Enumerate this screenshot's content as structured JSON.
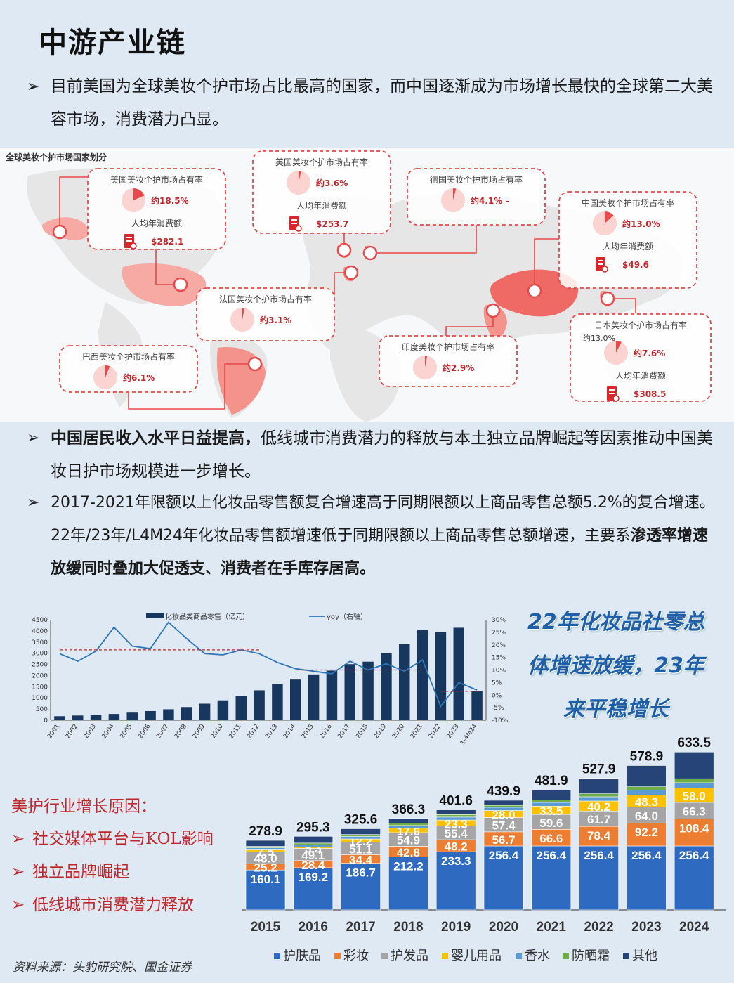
{
  "title": "中游产业链",
  "bullet1": {
    "arrow": "➢",
    "text": "目前美国为全球美妆个护市场占比最高的国家，而中国逐渐成为市场增长最快的全球第二大美容市场，消费潜力凸显。"
  },
  "map": {
    "title": "全球美妆个护市场国家划分",
    "countries": [
      {
        "title": "美国美妆个护市场占有率",
        "share": "约18.5%",
        "spend_label": "人均年消费额",
        "spend": "$282.1",
        "pct": 18.5
      },
      {
        "title": "英国美妆个护市场占有率",
        "share": "约3.6%",
        "spend_label": "人均年消费额",
        "spend": "$253.7",
        "pct": 3.6
      },
      {
        "title": "德国美妆个护市场占有率",
        "share": "约4.1% –",
        "pct": 4.1
      },
      {
        "title": "中国美妆个护市场占有率",
        "share": "约13.0%",
        "spend_label": "人均年消费额",
        "spend": "$49.6",
        "pct": 13.0
      },
      {
        "title": "法国美妆个护市场占有率",
        "share": "约3.1%",
        "pct": 3.1
      },
      {
        "title": "巴西美妆个护市场占有率",
        "share": "约6.1%",
        "pct": 6.1
      },
      {
        "title": "印度美妆个护市场占有率",
        "share": "约2.9%",
        "pct": 2.9
      },
      {
        "title": "日本美妆个护市场占有率",
        "extra": "约13.0%",
        "share": "约7.6%",
        "spend_label": "人均年消费额",
        "spend": "$308.5",
        "pct": 7.6
      }
    ]
  },
  "bullet2": {
    "arrow": "➢",
    "bold": "中国居民收入水平日益提高，",
    "text": "低线城市消费潜力的释放与本土独立品牌崛起等因素推动中国美妆日护市场规模进一步增长。"
  },
  "bullet3": {
    "arrow": "➢",
    "text": "2017-2021年限额以上化妆品零售额复合增速高于同期限额以上商品零售总额5.2%的复合增速。22年/23年/L4M24年化妆品零售额增速低于同期限额以上商品零售总额增速，主要系",
    "bold": "渗透率增速放缓同时叠加大促透支、消费者在手库存居高。"
  },
  "slogan": [
    "22年化妆品社零总",
    "体增速放缓，23年",
    "来平稳增长"
  ],
  "reasons": {
    "head": "美护行业增长原因：",
    "marker": "➢",
    "items": [
      "社交媒体平台与KOL影响",
      "独立品牌崛起",
      "低线城市消费潜力释放"
    ]
  },
  "source": "资料来源：头豹研究院、国金证券",
  "colors": {
    "navy": "#1b3f7a",
    "blue": "#2e6bc0",
    "orange": "#ed7d31",
    "gray": "#a5a5a5",
    "yellow": "#ffc000",
    "sky": "#5b9bd5",
    "green": "#70ad47",
    "dark": "#264478",
    "red": "#c0282d",
    "pink": "#f4a0a0"
  },
  "chart_data": [
    {
      "type": "bar",
      "title": "",
      "legend": [
        "化妆品类商品零售（亿元）",
        "yoy（右轴）"
      ],
      "categories": [
        "2001",
        "2002",
        "2003",
        "2004",
        "2005",
        "2006",
        "2007",
        "2008",
        "2009",
        "2010",
        "2011",
        "2012",
        "2013",
        "2014",
        "2015",
        "2016",
        "2017",
        "2018",
        "2019",
        "2020",
        "2021",
        "2022",
        "2023",
        "1-4M24"
      ],
      "values": [
        180,
        210,
        230,
        280,
        340,
        410,
        490,
        590,
        740,
        890,
        1100,
        1340,
        1630,
        1820,
        2050,
        2220,
        2510,
        2620,
        2990,
        3400,
        4030,
        3940,
        4140,
        1320
      ],
      "yoy": [
        16.5,
        13.5,
        17.5,
        27,
        19.5,
        18.5,
        29,
        22.5,
        16.5,
        16,
        18,
        16.5,
        13,
        10.5,
        9.5,
        8.5,
        13.5,
        10,
        12.5,
        9.5,
        14,
        -4.5,
        5,
        2
      ],
      "ylim": [
        0,
        4500
      ],
      "y2lim": [
        -10,
        30
      ],
      "yticks": [
        0,
        500,
        1000,
        1500,
        2000,
        2500,
        3000,
        3500,
        4000,
        4500
      ],
      "y2ticks": [
        "30%",
        "25%",
        "20%",
        "15%",
        "10%",
        "5%",
        "0%",
        "-5%",
        "-10%"
      ]
    },
    {
      "type": "bar",
      "title": "",
      "stacked": true,
      "categories": [
        "2015",
        "2016",
        "2017",
        "2018",
        "2019",
        "2020",
        "2021",
        "2022",
        "2023",
        "2024"
      ],
      "totals": [
        "278.9",
        "295.3",
        "325.6",
        "366.3",
        "401.6",
        "439.9",
        "481.9",
        "527.9",
        "578.9",
        "633.5"
      ],
      "series": [
        {
          "name": "护肤品",
          "values": [
            160.1,
            169.2,
            186.7,
            212.2,
            233.3,
            256.4,
            256.4,
            256.4,
            256.4,
            256.4
          ]
        },
        {
          "name": "彩妆",
          "values": [
            25.2,
            28.4,
            34.4,
            42.8,
            48.2,
            56.7,
            66.6,
            78.4,
            92.2,
            108.4
          ]
        },
        {
          "name": "护发品",
          "values": [
            48.0,
            49.1,
            51.1,
            54.9,
            55.4,
            57.4,
            59.6,
            61.7,
            64.0,
            66.3
          ]
        },
        {
          "name": "婴儿用品",
          "values": [
            7.5,
            5.3,
            12.2,
            17.6,
            23.3,
            28.0,
            33.5,
            40.2,
            48.3,
            58.0
          ]
        },
        {
          "name": "香水",
          "values": [
            8,
            9,
            10,
            11,
            12,
            13,
            15,
            17,
            19,
            21
          ]
        },
        {
          "name": "防晒霜",
          "values": [
            6,
            7,
            8,
            9,
            10,
            8,
            10,
            12,
            14,
            16
          ]
        },
        {
          "name": "其他",
          "values": [
            24,
            27,
            23,
            19,
            19,
            20,
            40,
            62,
            85,
            107
          ]
        }
      ],
      "labeled_series": [
        "护肤品",
        "彩妆",
        "护发品",
        "婴儿用品"
      ]
    }
  ]
}
